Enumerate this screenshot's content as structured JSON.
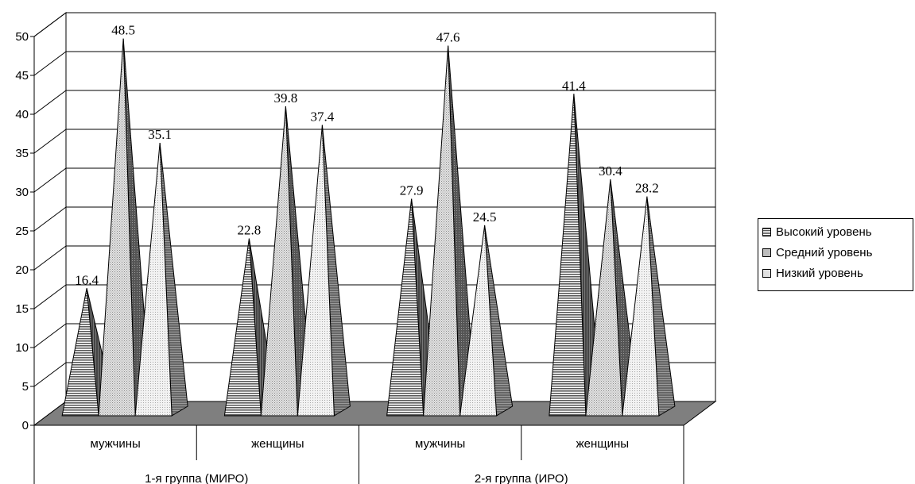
{
  "chart_data": {
    "type": "bar",
    "bar_shape": "3d-pyramid",
    "groups": [
      {
        "label": "1-я группа (МИРО)",
        "categories": [
          "мужчины",
          "женщины"
        ]
      },
      {
        "label": "2-я группа (ИРО)",
        "categories": [
          "мужчины",
          "женщины"
        ]
      }
    ],
    "categories": [
      "мужчины",
      "женщины",
      "мужчины",
      "женщины"
    ],
    "series": [
      {
        "name": "Высокий уровень",
        "values": [
          16.4,
          22.8,
          27.9,
          41.4
        ],
        "color": "#a8a8a8"
      },
      {
        "name": "Средний уровень",
        "values": [
          48.5,
          39.8,
          47.6,
          30.4
        ],
        "color": "#d2d2d2"
      },
      {
        "name": "Низкий уровень",
        "values": [
          35.1,
          37.4,
          24.5,
          28.2
        ],
        "color": "#e6e6e6"
      }
    ],
    "data_labels": [
      [
        "16.4",
        "22.8",
        "27.9",
        "41.4"
      ],
      [
        "48.5",
        "39.8",
        "47.6",
        "30.4"
      ],
      [
        "35.1",
        "37.4",
        "24.5",
        "28.2"
      ]
    ],
    "y_ticks": [
      "0",
      "5",
      "10",
      "15",
      "20",
      "25",
      "30",
      "35",
      "40",
      "45",
      "50"
    ],
    "ylim": [
      0,
      50
    ],
    "grid": true,
    "legend_position": "right"
  }
}
